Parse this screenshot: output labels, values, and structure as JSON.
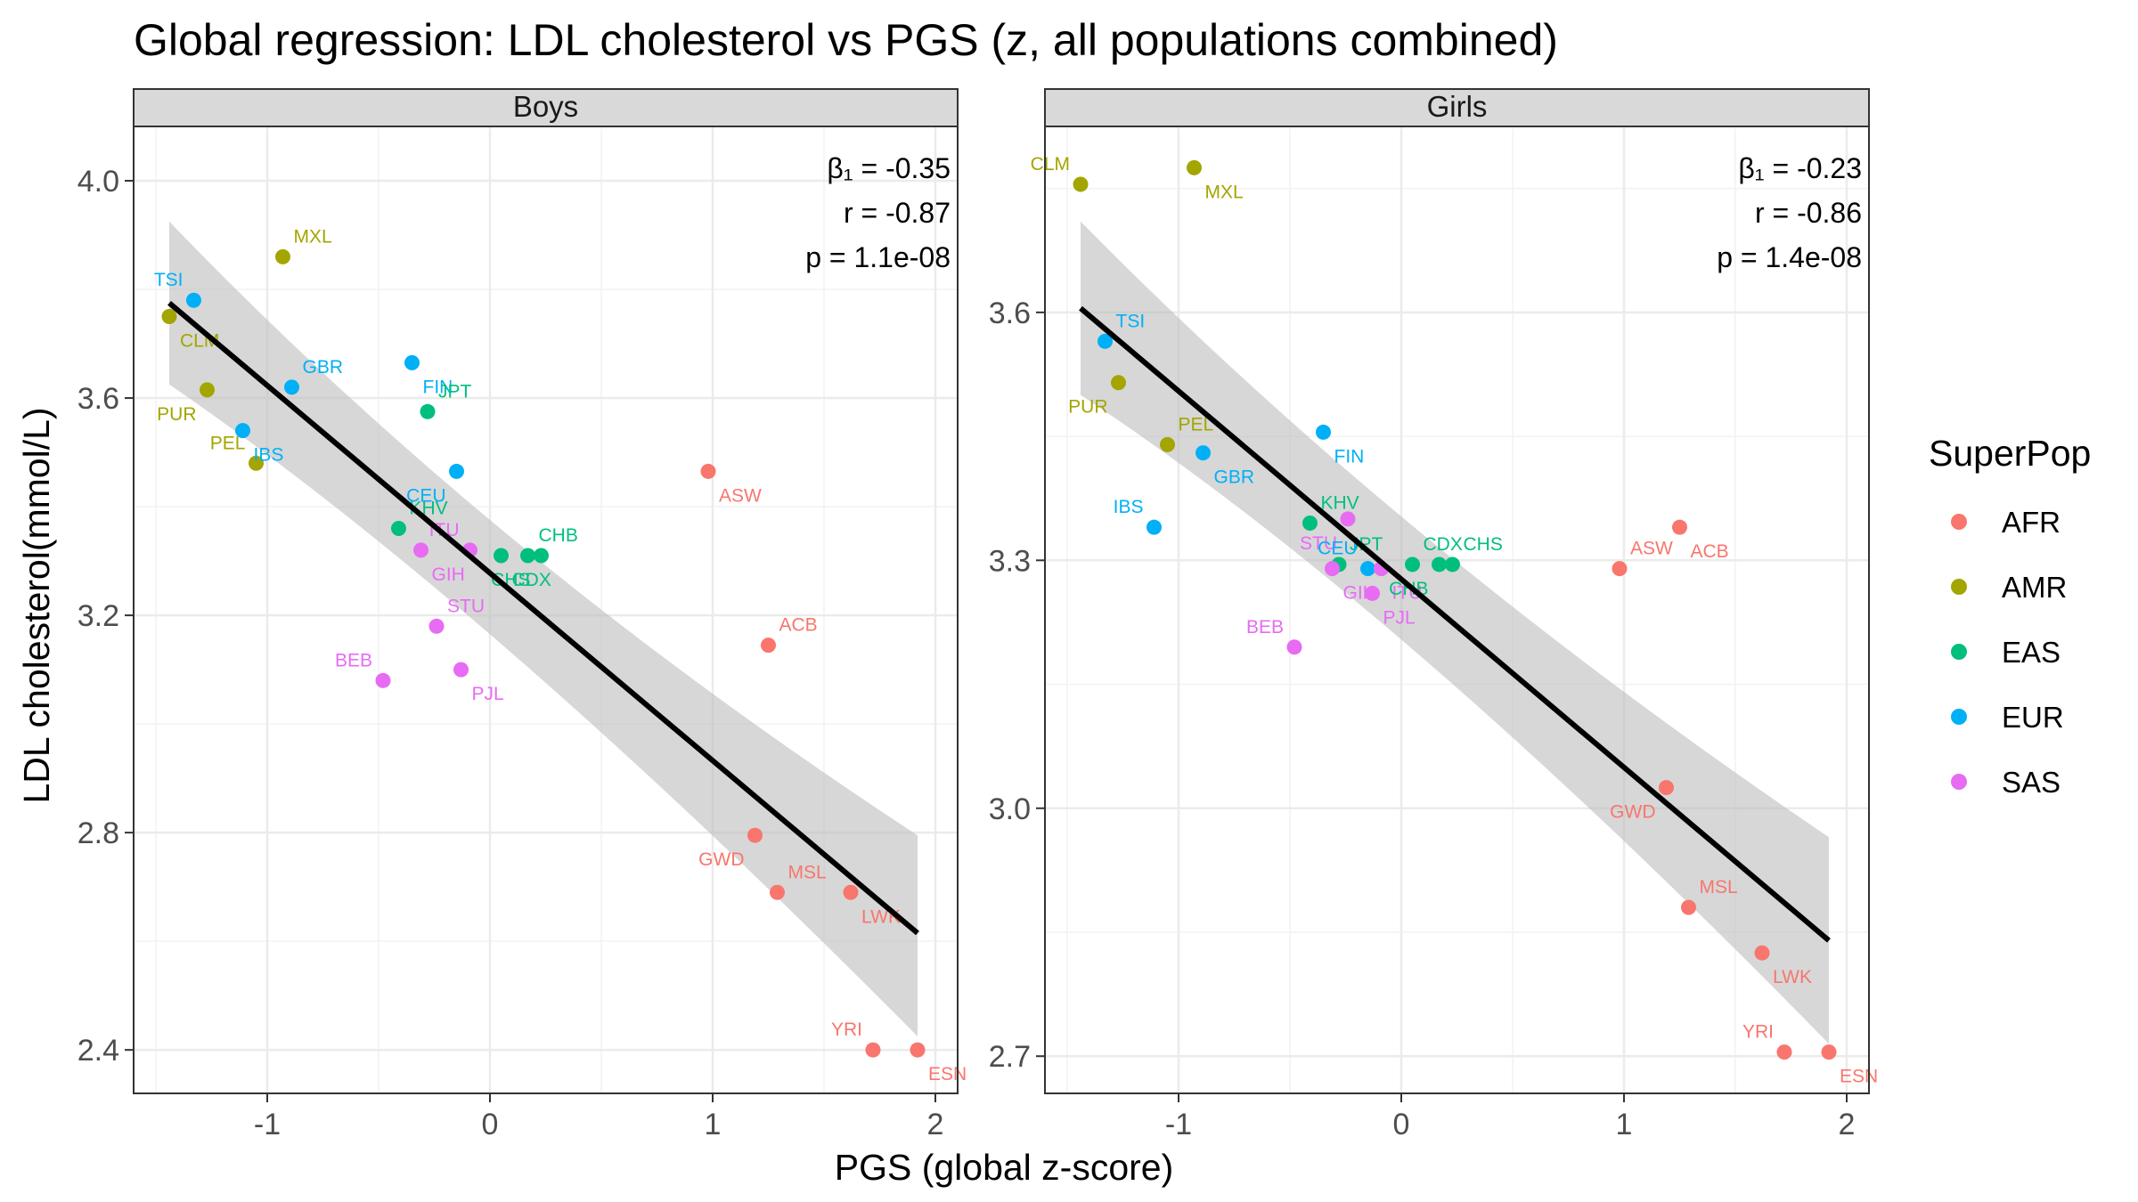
{
  "chart_data": {
    "type": "scatter",
    "title": "Global regression: LDL cholesterol vs PGS (z, all populations combined)",
    "xlabel": "PGS (global z-score)",
    "ylabel": "LDL cholesterol(mmol/L)",
    "legend": {
      "title": "SuperPop",
      "placement": "right",
      "entries": [
        {
          "name": "AFR",
          "color": "#F8766D"
        },
        {
          "name": "AMR",
          "color": "#A3A500"
        },
        {
          "name": "EAS",
          "color": "#00BF7D"
        },
        {
          "name": "EUR",
          "color": "#00B0F6"
        },
        {
          "name": "SAS",
          "color": "#E76BF3"
        }
      ]
    },
    "panels": [
      {
        "name": "Boys",
        "xlim": [
          -1.6,
          2.1
        ],
        "ylim": [
          2.32,
          4.1
        ],
        "xticks": [
          -1,
          0,
          1,
          2
        ],
        "yticks": [
          2.4,
          2.8,
          3.2,
          3.6,
          4.0
        ],
        "ytick_labels": [
          "2.4",
          "2.8",
          "3.2",
          "3.6",
          "4.0"
        ],
        "stats": {
          "beta": "β₁ = -0.35",
          "r": "r = -0.87",
          "p": "p = 1.1e-08"
        },
        "fit": {
          "x": [
            -1.44,
            1.92
          ],
          "y": [
            3.775,
            2.615
          ]
        },
        "band": {
          "x": [
            -1.44,
            1.92
          ],
          "upper": [
            3.925,
            2.795
          ],
          "lower": [
            3.625,
            2.425
          ],
          "mid_x": 0.0,
          "mid_upper": 3.3,
          "mid_lower": 3.23
        },
        "points": [
          {
            "pop": "TSI",
            "group": "EUR",
            "x": -1.33,
            "y": 3.78
          },
          {
            "pop": "CLM",
            "group": "AMR",
            "x": -1.44,
            "y": 3.75
          },
          {
            "pop": "MXL",
            "group": "AMR",
            "x": -0.93,
            "y": 3.86
          },
          {
            "pop": "PUR",
            "group": "AMR",
            "x": -1.27,
            "y": 3.615
          },
          {
            "pop": "GBR",
            "group": "EUR",
            "x": -0.89,
            "y": 3.62
          },
          {
            "pop": "IBS",
            "group": "EUR",
            "x": -1.11,
            "y": 3.54
          },
          {
            "pop": "PEL",
            "group": "AMR",
            "x": -1.05,
            "y": 3.48
          },
          {
            "pop": "FIN",
            "group": "EUR",
            "x": -0.35,
            "y": 3.665
          },
          {
            "pop": "JPT",
            "group": "EAS",
            "x": -0.28,
            "y": 3.575
          },
          {
            "pop": "CEU",
            "group": "EUR",
            "x": -0.15,
            "y": 3.465
          },
          {
            "pop": "KHV",
            "group": "EAS",
            "x": -0.41,
            "y": 3.36
          },
          {
            "pop": "GIH",
            "group": "SAS",
            "x": -0.31,
            "y": 3.32
          },
          {
            "pop": "ITU",
            "group": "SAS",
            "x": -0.09,
            "y": 3.32
          },
          {
            "pop": "CDX",
            "group": "EAS",
            "x": 0.05,
            "y": 3.31
          },
          {
            "pop": "CHB",
            "group": "EAS",
            "x": 0.17,
            "y": 3.31
          },
          {
            "pop": "CHS",
            "group": "EAS",
            "x": 0.23,
            "y": 3.31
          },
          {
            "pop": "STU",
            "group": "SAS",
            "x": -0.24,
            "y": 3.18
          },
          {
            "pop": "PJL",
            "group": "SAS",
            "x": -0.13,
            "y": 3.1
          },
          {
            "pop": "BEB",
            "group": "SAS",
            "x": -0.48,
            "y": 3.08
          },
          {
            "pop": "ASW",
            "group": "AFR",
            "x": 0.98,
            "y": 3.465
          },
          {
            "pop": "ACB",
            "group": "AFR",
            "x": 1.25,
            "y": 3.145
          },
          {
            "pop": "GWD",
            "group": "AFR",
            "x": 1.19,
            "y": 2.795
          },
          {
            "pop": "MSL",
            "group": "AFR",
            "x": 1.29,
            "y": 2.69
          },
          {
            "pop": "LWK",
            "group": "AFR",
            "x": 1.62,
            "y": 2.69
          },
          {
            "pop": "YRI",
            "group": "AFR",
            "x": 1.72,
            "y": 2.4
          },
          {
            "pop": "ESN",
            "group": "AFR",
            "x": 1.92,
            "y": 2.4
          }
        ]
      },
      {
        "name": "Girls",
        "xlim": [
          -1.6,
          2.1
        ],
        "ylim": [
          2.655,
          3.825
        ],
        "xticks": [
          -1,
          0,
          1,
          2
        ],
        "yticks": [
          2.7,
          3.0,
          3.3,
          3.6
        ],
        "ytick_labels": [
          "2.7",
          "3.0",
          "3.3",
          "3.6"
        ],
        "stats": {
          "beta": "β₁ = -0.23",
          "r": "r = -0.86",
          "p": "p = 1.4e-08"
        },
        "fit": {
          "x": [
            -1.44,
            1.92
          ],
          "y": [
            3.605,
            2.84
          ]
        },
        "band": {
          "x": [
            -1.44,
            1.92
          ],
          "upper": [
            3.71,
            2.965
          ],
          "lower": [
            3.5,
            2.715
          ],
          "mid_x": 0.0,
          "mid_upper": 3.305,
          "mid_lower": 3.255
        },
        "points": [
          {
            "pop": "CLM",
            "group": "AMR",
            "x": -1.44,
            "y": 3.755
          },
          {
            "pop": "MXL",
            "group": "AMR",
            "x": -0.93,
            "y": 3.775
          },
          {
            "pop": "TSI",
            "group": "EUR",
            "x": -1.33,
            "y": 3.565
          },
          {
            "pop": "PUR",
            "group": "AMR",
            "x": -1.27,
            "y": 3.515
          },
          {
            "pop": "PEL",
            "group": "AMR",
            "x": -1.05,
            "y": 3.44
          },
          {
            "pop": "GBR",
            "group": "EUR",
            "x": -0.89,
            "y": 3.43
          },
          {
            "pop": "IBS",
            "group": "EUR",
            "x": -1.11,
            "y": 3.34
          },
          {
            "pop": "FIN",
            "group": "EUR",
            "x": -0.35,
            "y": 3.455
          },
          {
            "pop": "KHV",
            "group": "EAS",
            "x": -0.41,
            "y": 3.345
          },
          {
            "pop": "STU",
            "group": "SAS",
            "x": -0.24,
            "y": 3.35
          },
          {
            "pop": "JPT",
            "group": "EAS",
            "x": -0.28,
            "y": 3.295
          },
          {
            "pop": "GIH",
            "group": "SAS",
            "x": -0.31,
            "y": 3.29
          },
          {
            "pop": "CEU",
            "group": "EUR",
            "x": -0.15,
            "y": 3.29
          },
          {
            "pop": "ITU",
            "group": "SAS",
            "x": -0.09,
            "y": 3.29
          },
          {
            "pop": "CDX",
            "group": "EAS",
            "x": 0.05,
            "y": 3.295
          },
          {
            "pop": "CHB",
            "group": "EAS",
            "x": 0.17,
            "y": 3.295
          },
          {
            "pop": "CHS",
            "group": "EAS",
            "x": 0.23,
            "y": 3.295
          },
          {
            "pop": "PJL",
            "group": "SAS",
            "x": -0.13,
            "y": 3.26
          },
          {
            "pop": "BEB",
            "group": "SAS",
            "x": -0.48,
            "y": 3.195
          },
          {
            "pop": "ACB",
            "group": "AFR",
            "x": 1.25,
            "y": 3.34
          },
          {
            "pop": "ASW",
            "group": "AFR",
            "x": 0.98,
            "y": 3.29
          },
          {
            "pop": "GWD",
            "group": "AFR",
            "x": 1.19,
            "y": 3.025
          },
          {
            "pop": "MSL",
            "group": "AFR",
            "x": 1.29,
            "y": 2.88
          },
          {
            "pop": "LWK",
            "group": "AFR",
            "x": 1.62,
            "y": 2.825
          },
          {
            "pop": "YRI",
            "group": "AFR",
            "x": 1.72,
            "y": 2.705
          },
          {
            "pop": "ESN",
            "group": "AFR",
            "x": 1.92,
            "y": 2.705
          }
        ]
      }
    ]
  }
}
